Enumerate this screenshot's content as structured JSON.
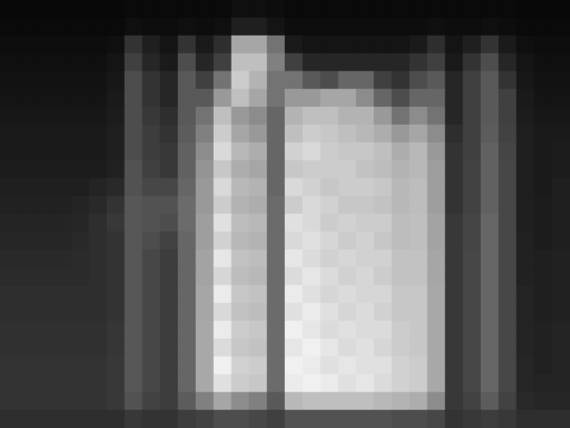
{
  "chart_data": {
    "type": "heatmap",
    "tick_labels": false,
    "zlim": [
      0,
      100
    ],
    "cells": [
      [
        3,
        3,
        3,
        3,
        3,
        3,
        3,
        4,
        4,
        4,
        4,
        4,
        4,
        6,
        6,
        5,
        4,
        4,
        4,
        4,
        4,
        4,
        4,
        4,
        4,
        4,
        4,
        4,
        4,
        3,
        3,
        3
      ],
      [
        4,
        4,
        4,
        4,
        4,
        4,
        4,
        6,
        5,
        5,
        6,
        5,
        6,
        12,
        12,
        8,
        5,
        5,
        5,
        5,
        5,
        5,
        5,
        5,
        6,
        5,
        5,
        6,
        5,
        4,
        4,
        4
      ],
      [
        5,
        5,
        5,
        5,
        5,
        5,
        6,
        20,
        12,
        8,
        20,
        10,
        18,
        65,
        65,
        45,
        10,
        8,
        8,
        8,
        8,
        8,
        8,
        10,
        18,
        8,
        12,
        20,
        10,
        6,
        5,
        5
      ],
      [
        6,
        6,
        6,
        6,
        6,
        6,
        8,
        25,
        15,
        10,
        30,
        15,
        25,
        75,
        75,
        50,
        25,
        15,
        15,
        15,
        15,
        15,
        15,
        20,
        25,
        10,
        20,
        30,
        15,
        8,
        6,
        6
      ],
      [
        7,
        7,
        7,
        7,
        7,
        7,
        9,
        30,
        20,
        15,
        35,
        25,
        45,
        80,
        70,
        45,
        45,
        35,
        30,
        40,
        40,
        25,
        20,
        30,
        35,
        15,
        25,
        35,
        20,
        9,
        7,
        7
      ],
      [
        8,
        8,
        8,
        8,
        8,
        8,
        10,
        30,
        20,
        15,
        35,
        35,
        60,
        75,
        65,
        45,
        60,
        60,
        65,
        65,
        55,
        40,
        30,
        40,
        40,
        15,
        25,
        35,
        25,
        10,
        8,
        8
      ],
      [
        9,
        9,
        9,
        9,
        9,
        9,
        11,
        30,
        22,
        18,
        35,
        45,
        75,
        60,
        55,
        40,
        70,
        75,
        75,
        70,
        70,
        60,
        45,
        55,
        45,
        15,
        25,
        35,
        25,
        11,
        9,
        9
      ],
      [
        10,
        10,
        10,
        10,
        10,
        10,
        12,
        30,
        24,
        20,
        36,
        50,
        80,
        65,
        60,
        40,
        75,
        80,
        78,
        75,
        72,
        68,
        60,
        65,
        55,
        18,
        25,
        36,
        26,
        12,
        10,
        10
      ],
      [
        10,
        10,
        10,
        10,
        10,
        10,
        12,
        30,
        24,
        22,
        38,
        55,
        85,
        72,
        68,
        40,
        82,
        85,
        80,
        78,
        78,
        75,
        68,
        72,
        60,
        20,
        25,
        38,
        27,
        12,
        10,
        11
      ],
      [
        11,
        11,
        11,
        11,
        11,
        11,
        13,
        32,
        25,
        22,
        38,
        58,
        78,
        68,
        65,
        40,
        78,
        80,
        80,
        80,
        76,
        74,
        70,
        72,
        62,
        20,
        26,
        38,
        28,
        12,
        10,
        11
      ],
      [
        12,
        12,
        12,
        12,
        12,
        14,
        16,
        32,
        28,
        28,
        40,
        60,
        85,
        72,
        70,
        40,
        85,
        82,
        78,
        80,
        80,
        78,
        72,
        74,
        62,
        20,
        26,
        38,
        28,
        12,
        10,
        12
      ],
      [
        13,
        13,
        13,
        13,
        14,
        16,
        20,
        34,
        32,
        32,
        42,
        60,
        80,
        70,
        68,
        42,
        80,
        85,
        82,
        78,
        78,
        76,
        72,
        74,
        62,
        20,
        26,
        38,
        28,
        12,
        11,
        12
      ],
      [
        14,
        14,
        14,
        14,
        15,
        18,
        22,
        34,
        32,
        30,
        42,
        62,
        88,
        74,
        72,
        42,
        88,
        85,
        80,
        82,
        80,
        80,
        74,
        75,
        64,
        22,
        27,
        40,
        28,
        12,
        11,
        12
      ],
      [
        15,
        15,
        15,
        15,
        16,
        18,
        20,
        34,
        30,
        26,
        40,
        62,
        82,
        72,
        70,
        42,
        85,
        88,
        84,
        80,
        82,
        78,
        74,
        75,
        64,
        22,
        27,
        40,
        28,
        13,
        11,
        12
      ],
      [
        16,
        16,
        16,
        16,
        17,
        18,
        20,
        34,
        28,
        24,
        40,
        64,
        90,
        76,
        74,
        42,
        90,
        86,
        82,
        84,
        82,
        82,
        76,
        76,
        65,
        22,
        28,
        40,
        28,
        13,
        12,
        13
      ],
      [
        17,
        17,
        17,
        17,
        17,
        18,
        20,
        34,
        28,
        24,
        40,
        64,
        84,
        74,
        72,
        42,
        86,
        90,
        86,
        82,
        84,
        80,
        76,
        76,
        65,
        22,
        28,
        40,
        28,
        13,
        12,
        13
      ],
      [
        18,
        18,
        18,
        18,
        18,
        18,
        20,
        34,
        28,
        24,
        40,
        65,
        92,
        78,
        76,
        42,
        92,
        88,
        84,
        86,
        84,
        84,
        78,
        78,
        66,
        22,
        28,
        40,
        28,
        14,
        12,
        13
      ],
      [
        18,
        18,
        18,
        18,
        18,
        18,
        20,
        34,
        28,
        24,
        40,
        65,
        85,
        76,
        74,
        42,
        88,
        92,
        88,
        84,
        86,
        82,
        78,
        78,
        66,
        22,
        28,
        40,
        28,
        14,
        12,
        13
      ],
      [
        19,
        19,
        19,
        19,
        19,
        19,
        21,
        34,
        28,
        24,
        40,
        66,
        92,
        80,
        78,
        42,
        94,
        90,
        86,
        88,
        86,
        86,
        80,
        78,
        66,
        22,
        28,
        40,
        28,
        14,
        13,
        14
      ],
      [
        19,
        19,
        19,
        19,
        19,
        19,
        21,
        34,
        28,
        24,
        40,
        66,
        86,
        78,
        76,
        42,
        90,
        94,
        90,
        86,
        88,
        84,
        80,
        78,
        66,
        22,
        28,
        40,
        28,
        14,
        13,
        14
      ],
      [
        20,
        20,
        20,
        20,
        20,
        20,
        22,
        34,
        28,
        24,
        40,
        66,
        94,
        82,
        80,
        42,
        94,
        92,
        88,
        90,
        88,
        88,
        82,
        80,
        66,
        22,
        28,
        40,
        28,
        15,
        13,
        14
      ],
      [
        20,
        20,
        20,
        20,
        20,
        20,
        22,
        34,
        28,
        24,
        40,
        66,
        88,
        80,
        78,
        42,
        92,
        94,
        92,
        88,
        90,
        86,
        82,
        80,
        66,
        22,
        28,
        40,
        28,
        15,
        14,
        14
      ],
      [
        20,
        20,
        20,
        20,
        20,
        20,
        22,
        32,
        26,
        24,
        36,
        50,
        65,
        55,
        50,
        35,
        72,
        75,
        75,
        75,
        75,
        72,
        70,
        68,
        55,
        22,
        26,
        36,
        26,
        16,
        15,
        15
      ],
      [
        18,
        18,
        18,
        18,
        18,
        18,
        18,
        22,
        20,
        20,
        24,
        26,
        30,
        30,
        28,
        25,
        32,
        32,
        32,
        32,
        32,
        32,
        30,
        30,
        28,
        20,
        22,
        24,
        22,
        18,
        18,
        18
      ]
    ]
  }
}
